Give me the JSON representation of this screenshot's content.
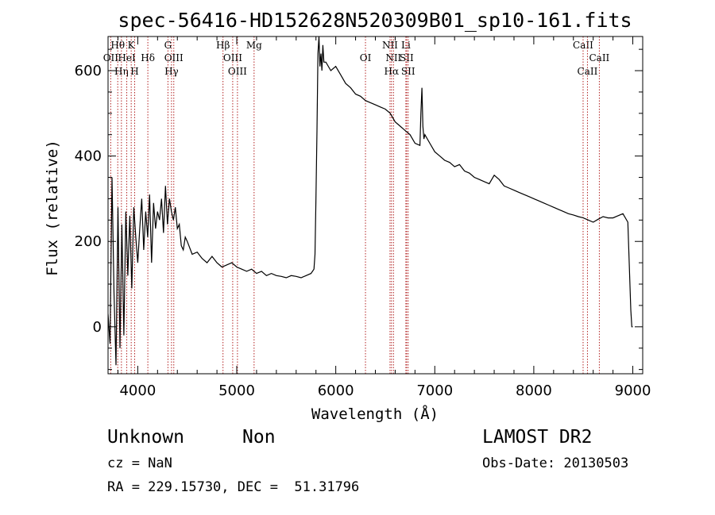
{
  "chart_data": {
    "type": "line",
    "title": "spec-56416-HD152628N520309B01_sp10-161.fits",
    "xlabel": "Wavelength (Å)",
    "ylabel": "Flux (relative)",
    "xlim": [
      3700,
      9100
    ],
    "ylim": [
      -110,
      680
    ],
    "xticks": [
      4000,
      5000,
      6000,
      7000,
      8000,
      9000
    ],
    "yticks": [
      0,
      200,
      400,
      600
    ],
    "grid": false,
    "series": [
      {
        "values_note": "",
        "x": [
          3700,
          3720,
          3740,
          3760,
          3780,
          3800,
          3820,
          3840,
          3860,
          3880,
          3900,
          3920,
          3940,
          3960,
          3980,
          4000,
          4020,
          4040,
          4060,
          4080,
          4100,
          4120,
          4140,
          4160,
          4180,
          4200,
          4220,
          4240,
          4260,
          4280,
          4300,
          4320,
          4340,
          4360,
          4380,
          4400,
          4420,
          4440,
          4460,
          4480,
          4500,
          4550,
          4600,
          4650,
          4700,
          4750,
          4800,
          4850,
          4900,
          4950,
          5000,
          5050,
          5100,
          5150,
          5200,
          5250,
          5300,
          5350,
          5400,
          5450,
          5500,
          5550,
          5600,
          5650,
          5700,
          5750,
          5780,
          5790,
          5800,
          5810,
          5820,
          5830,
          5840,
          5850,
          5860,
          5870,
          5880,
          5900,
          5950,
          6000,
          6050,
          6100,
          6150,
          6200,
          6250,
          6300,
          6350,
          6400,
          6450,
          6500,
          6550,
          6600,
          6650,
          6700,
          6750,
          6800,
          6850,
          6860,
          6870,
          6880,
          6890,
          6900,
          6950,
          7000,
          7050,
          7100,
          7150,
          7200,
          7250,
          7300,
          7350,
          7400,
          7450,
          7500,
          7550,
          7600,
          7650,
          7700,
          7750,
          7800,
          7850,
          7900,
          7950,
          8000,
          8050,
          8100,
          8150,
          8200,
          8250,
          8300,
          8350,
          8400,
          8450,
          8500,
          8550,
          8600,
          8650,
          8700,
          8750,
          8800,
          8850,
          8900,
          8950,
          8980,
          8990,
          9000
        ],
        "values": [
          30,
          -40,
          350,
          80,
          -90,
          280,
          -50,
          240,
          -20,
          270,
          120,
          260,
          90,
          280,
          210,
          150,
          230,
          300,
          180,
          270,
          210,
          310,
          150,
          290,
          230,
          270,
          250,
          300,
          220,
          330,
          240,
          300,
          270,
          250,
          280,
          230,
          240,
          190,
          180,
          210,
          200,
          170,
          175,
          160,
          150,
          165,
          150,
          140,
          145,
          150,
          140,
          135,
          130,
          135,
          125,
          130,
          120,
          125,
          120,
          118,
          115,
          120,
          118,
          115,
          120,
          125,
          135,
          170,
          300,
          460,
          640,
          680,
          610,
          640,
          600,
          660,
          620,
          620,
          600,
          610,
          590,
          570,
          560,
          545,
          540,
          530,
          525,
          520,
          515,
          510,
          500,
          480,
          470,
          460,
          450,
          430,
          425,
          500,
          560,
          470,
          440,
          450,
          430,
          410,
          400,
          390,
          385,
          375,
          380,
          365,
          360,
          350,
          345,
          340,
          335,
          355,
          345,
          330,
          325,
          320,
          315,
          310,
          305,
          300,
          295,
          290,
          285,
          280,
          275,
          270,
          265,
          262,
          258,
          255,
          250,
          245,
          252,
          258,
          255,
          255,
          260,
          265,
          245,
          40,
          0,
          0
        ]
      }
    ],
    "line_markers": [
      {
        "label": "Hθ",
        "wavelength": 3798,
        "row": 0
      },
      {
        "label": "OII",
        "wavelength": 3727,
        "row": 1
      },
      {
        "label": "Hη",
        "wavelength": 3835,
        "row": 2
      },
      {
        "label": "HeI",
        "wavelength": 3889,
        "row": 1
      },
      {
        "label": "K",
        "wavelength": 3934,
        "row": 0
      },
      {
        "label": "H",
        "wavelength": 3969,
        "row": 2
      },
      {
        "label": "Hδ",
        "wavelength": 4102,
        "row": 1
      },
      {
        "label": "G",
        "wavelength": 4305,
        "row": 0
      },
      {
        "label": "OIII",
        "wavelength": 4364,
        "row": 1
      },
      {
        "label": "Hγ",
        "wavelength": 4341,
        "row": 2
      },
      {
        "label": "Hβ",
        "wavelength": 4861,
        "row": 0
      },
      {
        "label": "OIII",
        "wavelength": 4959,
        "row": 1
      },
      {
        "label": "OIII",
        "wavelength": 5007,
        "row": 2
      },
      {
        "label": "Mg",
        "wavelength": 5175,
        "row": 0
      },
      {
        "label": "OI",
        "wavelength": 6300,
        "row": 1
      },
      {
        "label": "NII",
        "wavelength": 6548,
        "row": 0
      },
      {
        "label": "NII",
        "wavelength": 6583,
        "row": 1
      },
      {
        "label": "Hα",
        "wavelength": 6563,
        "row": 2
      },
      {
        "label": "Li",
        "wavelength": 6708,
        "row": 0
      },
      {
        "label": "SII",
        "wavelength": 6716,
        "row": 1
      },
      {
        "label": "SII",
        "wavelength": 6731,
        "row": 2
      },
      {
        "label": "CaII",
        "wavelength": 8498,
        "row": 0
      },
      {
        "label": "CaII",
        "wavelength": 8542,
        "row": 2
      },
      {
        "label": "CaII",
        "wavelength": 8662,
        "row": 1
      }
    ]
  },
  "info": {
    "object_class": "Unknown",
    "subclass": "Non",
    "survey": "LAMOST DR2",
    "redshift": "cz = NaN",
    "obs_date": "Obs-Date: 20130503",
    "coords": "RA = 229.15730, DEC =  51.31796"
  },
  "colors": {
    "spectrum": "#000000",
    "marker_line": "#b22222",
    "axis": "#000000"
  }
}
